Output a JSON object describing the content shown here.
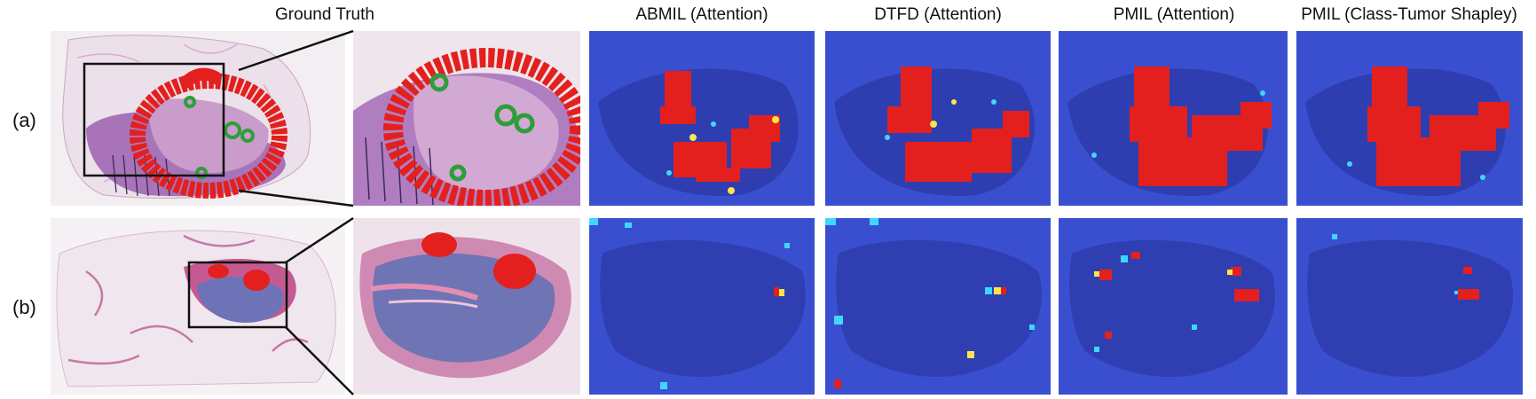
{
  "columns": [
    {
      "title": "Ground Truth"
    },
    {
      "title": "ABMIL (Attention)"
    },
    {
      "title": "DTFD (Attention)"
    },
    {
      "title": "PMIL (Attention)"
    },
    {
      "title": "PMIL (Class-Tumor Shapley)"
    }
  ],
  "rows": [
    {
      "label": "(a)"
    },
    {
      "label": "(b)"
    }
  ],
  "colors": {
    "tissue_pink": "#d9a3c6",
    "tissue_purple": "#8b5a9e",
    "tumor_red": "#e3201d",
    "normal_green": "#2e9e3a",
    "heatmap_blue": "#3a4fd0",
    "heatmap_dark": "#2c3aa8"
  }
}
